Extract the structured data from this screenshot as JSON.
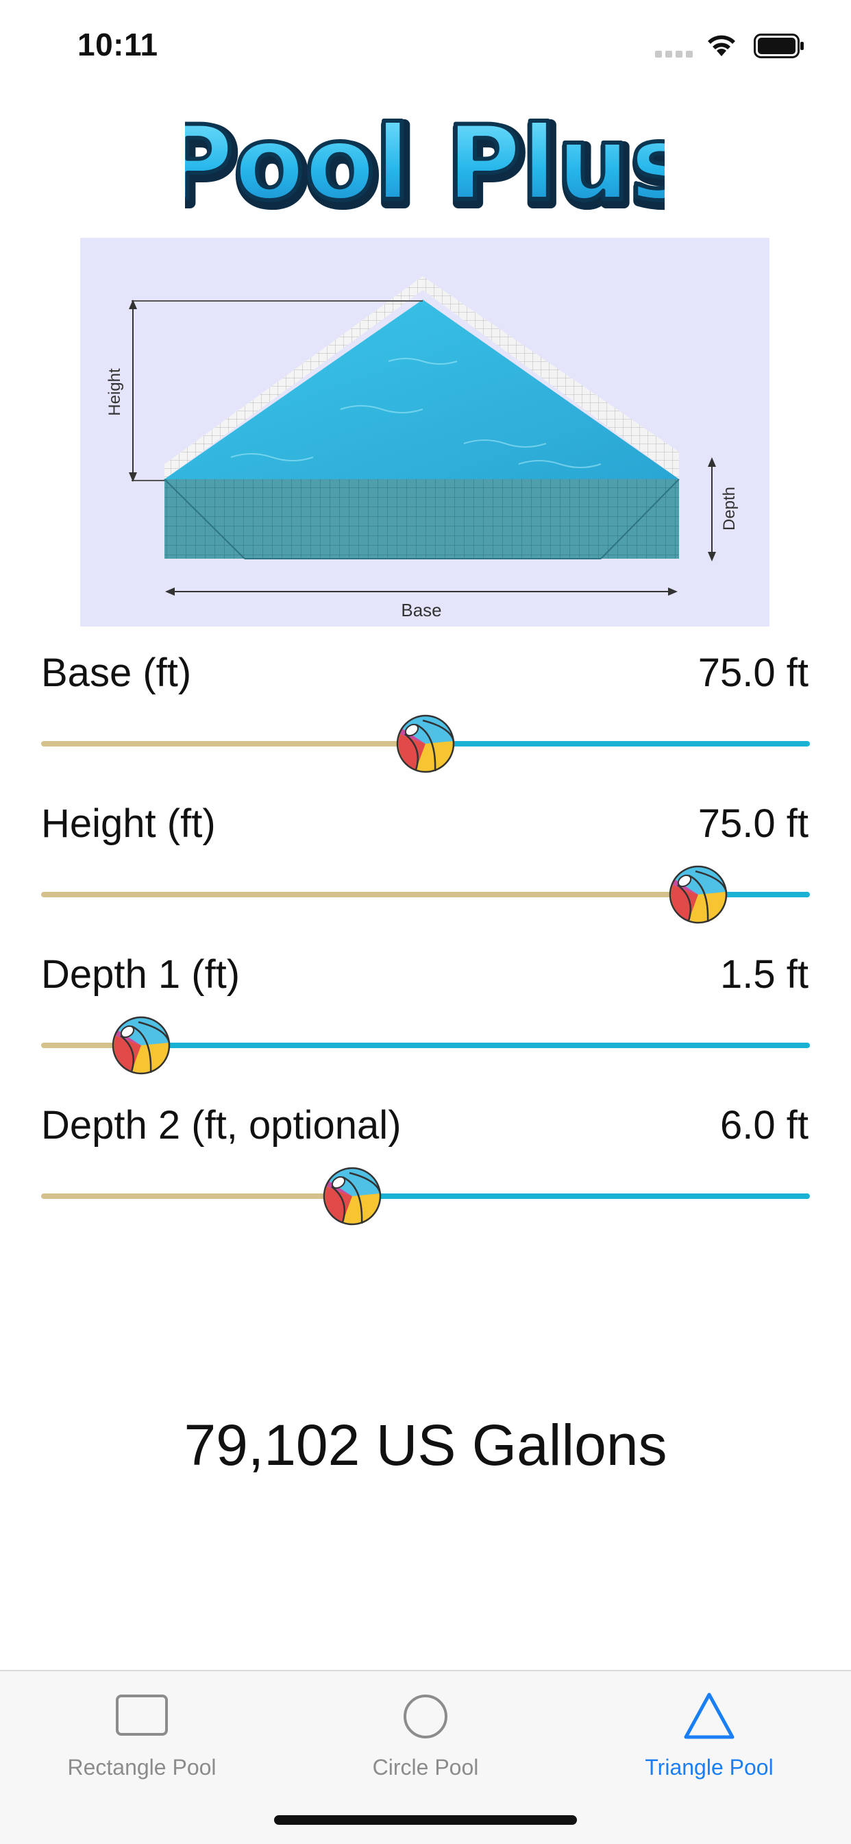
{
  "status": {
    "time": "10:11"
  },
  "app": {
    "title": "Pool Plus"
  },
  "diagram": {
    "labels": {
      "height": "Height",
      "depth": "Depth",
      "base": "Base"
    }
  },
  "sliders": [
    {
      "label": "Base (ft)",
      "value": "75.0 ft",
      "fraction": 0.5
    },
    {
      "label": "Height (ft)",
      "value": "75.0 ft",
      "fraction": 0.855
    },
    {
      "label": "Depth 1 (ft)",
      "value": "1.5 ft",
      "fraction": 0.13
    },
    {
      "label": "Depth 2 (ft, optional)",
      "value": "6.0 ft",
      "fraction": 0.405
    }
  ],
  "result": {
    "text": "79,102  US Gallons"
  },
  "tabs": [
    {
      "label": "Rectangle Pool",
      "icon": "rectangle-icon",
      "active": false
    },
    {
      "label": "Circle Pool",
      "icon": "circle-icon",
      "active": false
    },
    {
      "label": "Triangle Pool",
      "icon": "triangle-icon",
      "active": true
    }
  ],
  "colors": {
    "track_left": "#d4c18c",
    "track_right": "#19b2d4",
    "tab_active": "#1a7ef5",
    "tab_inactive": "#8c8c8c",
    "diagram_bg": "#e4e4fb"
  }
}
